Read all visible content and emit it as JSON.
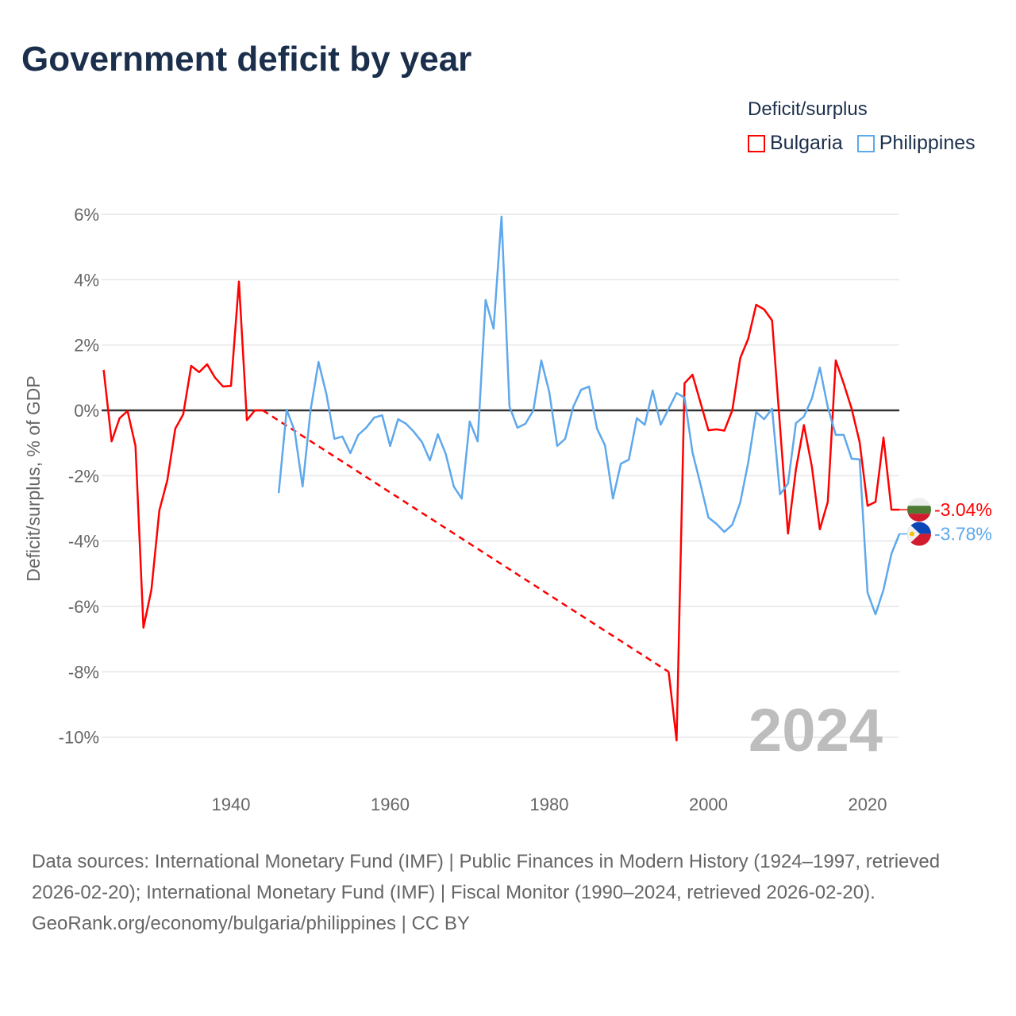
{
  "title": "Government deficit by year",
  "legend": {
    "title": "Deficit/surplus",
    "items": [
      {
        "name": "Bulgaria",
        "color": "#ff0000"
      },
      {
        "name": "Philippines",
        "color": "#5ea8ec"
      }
    ]
  },
  "year_watermark": "2024",
  "footer": {
    "sources": "Data sources: International Monetary Fund (IMF) | Public Finances in Modern History (1924–1997, retrieved 2026-02-20); International Monetary Fund (IMF) | Fiscal Monitor (1990–2024, retrieved 2026-02-20).",
    "credit": "GeoRank.org/economy/bulgaria/philippines | CC BY"
  },
  "chart_data": {
    "type": "line",
    "title": "Government deficit by year",
    "xlabel": "",
    "ylabel": "Deficit/surplus, % of GDP",
    "xlim": [
      1924,
      2024
    ],
    "ylim": [
      -10,
      6
    ],
    "yticks": [
      6,
      4,
      2,
      0,
      -2,
      -4,
      -6,
      -8,
      -10
    ],
    "ytick_labels": [
      "6%",
      "4%",
      "2%",
      "0%",
      "-2%",
      "-4%",
      "-6%",
      "-8%",
      "-10%"
    ],
    "xticks": [
      1940,
      1960,
      1980,
      2000,
      2020
    ],
    "xtick_labels": [
      "1940",
      "1960",
      "1980",
      "2000",
      "2020"
    ],
    "grid": true,
    "legend_position": "top-right",
    "series": [
      {
        "name": "Bulgaria",
        "color": "#ff0000",
        "end_label": "-3.04%",
        "points": [
          [
            1924,
            1.24
          ],
          [
            1925,
            -0.95
          ],
          [
            1926,
            -0.24
          ],
          [
            1927,
            -0.02
          ],
          [
            1928,
            -1.09
          ],
          [
            1929,
            -6.65
          ],
          [
            1930,
            -5.49
          ],
          [
            1931,
            -3.06
          ],
          [
            1932,
            -2.14
          ],
          [
            1933,
            -0.56
          ],
          [
            1934,
            -0.12
          ],
          [
            1935,
            1.36
          ],
          [
            1936,
            1.17
          ],
          [
            1937,
            1.41
          ],
          [
            1938,
            1.0
          ],
          [
            1939,
            0.73
          ],
          [
            1940,
            0.75
          ],
          [
            1941,
            3.94
          ],
          [
            1942,
            -0.3
          ],
          [
            1943,
            0.0
          ],
          [
            1944,
            0.0
          ],
          [
            1995,
            -8.0
          ],
          [
            1996,
            -10.1
          ],
          [
            1997,
            0.83
          ],
          [
            1998,
            1.09
          ],
          [
            1999,
            0.24
          ],
          [
            2000,
            -0.61
          ],
          [
            2001,
            -0.58
          ],
          [
            2002,
            -0.62
          ],
          [
            2003,
            0.0
          ],
          [
            2004,
            1.6
          ],
          [
            2005,
            2.19
          ],
          [
            2006,
            3.23
          ],
          [
            2007,
            3.09
          ],
          [
            2008,
            2.75
          ],
          [
            2009,
            -0.5
          ],
          [
            2010,
            -3.77
          ],
          [
            2011,
            -1.8
          ],
          [
            2012,
            -0.45
          ],
          [
            2013,
            -1.72
          ],
          [
            2014,
            -3.64
          ],
          [
            2015,
            -2.8
          ],
          [
            2016,
            1.53
          ],
          [
            2017,
            0.82
          ],
          [
            2018,
            0.05
          ],
          [
            2019,
            -0.97
          ],
          [
            2020,
            -2.92
          ],
          [
            2021,
            -2.8
          ],
          [
            2022,
            -0.83
          ],
          [
            2023,
            -3.04
          ],
          [
            2024,
            -3.04
          ]
        ]
      },
      {
        "name": "Philippines",
        "color": "#5ea8ec",
        "end_label": "-3.78%",
        "points": [
          [
            1946,
            -2.53
          ],
          [
            1947,
            0.02
          ],
          [
            1948,
            -0.63
          ],
          [
            1949,
            -2.33
          ],
          [
            1950,
            0.0
          ],
          [
            1951,
            1.48
          ],
          [
            1952,
            0.49
          ],
          [
            1953,
            -0.87
          ],
          [
            1954,
            -0.8
          ],
          [
            1955,
            -1.31
          ],
          [
            1956,
            -0.75
          ],
          [
            1957,
            -0.53
          ],
          [
            1958,
            -0.22
          ],
          [
            1959,
            -0.15
          ],
          [
            1960,
            -1.09
          ],
          [
            1961,
            -0.27
          ],
          [
            1962,
            -0.41
          ],
          [
            1963,
            -0.66
          ],
          [
            1964,
            -0.97
          ],
          [
            1965,
            -1.53
          ],
          [
            1966,
            -0.73
          ],
          [
            1967,
            -1.34
          ],
          [
            1968,
            -2.33
          ],
          [
            1969,
            -2.7
          ],
          [
            1970,
            -0.34
          ],
          [
            1971,
            -0.95
          ],
          [
            1972,
            3.38
          ],
          [
            1973,
            2.5
          ],
          [
            1974,
            5.93
          ],
          [
            1975,
            0.12
          ],
          [
            1976,
            -0.53
          ],
          [
            1977,
            -0.41
          ],
          [
            1978,
            0.0
          ],
          [
            1979,
            1.53
          ],
          [
            1980,
            0.56
          ],
          [
            1981,
            -1.09
          ],
          [
            1982,
            -0.87
          ],
          [
            1983,
            0.1
          ],
          [
            1984,
            0.63
          ],
          [
            1985,
            0.73
          ],
          [
            1986,
            -0.56
          ],
          [
            1987,
            -1.07
          ],
          [
            1988,
            -2.7
          ],
          [
            1989,
            -1.63
          ],
          [
            1990,
            -1.51
          ],
          [
            1991,
            -0.24
          ],
          [
            1992,
            -0.44
          ],
          [
            1993,
            0.61
          ],
          [
            1994,
            -0.44
          ],
          [
            1995,
            0.05
          ],
          [
            1996,
            0.53
          ],
          [
            1997,
            0.39
          ],
          [
            1998,
            -1.29
          ],
          [
            1999,
            -2.26
          ],
          [
            2000,
            -3.28
          ],
          [
            2001,
            -3.47
          ],
          [
            2002,
            -3.72
          ],
          [
            2003,
            -3.5
          ],
          [
            2004,
            -2.82
          ],
          [
            2005,
            -1.6
          ],
          [
            2006,
            -0.05
          ],
          [
            2007,
            -0.27
          ],
          [
            2008,
            0.05
          ],
          [
            2009,
            -2.57
          ],
          [
            2010,
            -2.24
          ],
          [
            2011,
            -0.39
          ],
          [
            2012,
            -0.19
          ],
          [
            2013,
            0.36
          ],
          [
            2014,
            1.31
          ],
          [
            2015,
            0.1
          ],
          [
            2016,
            -0.75
          ],
          [
            2017,
            -0.75
          ],
          [
            2018,
            -1.48
          ],
          [
            2019,
            -1.5
          ],
          [
            2020,
            -5.58
          ],
          [
            2021,
            -6.24
          ],
          [
            2022,
            -5.49
          ],
          [
            2023,
            -4.39
          ],
          [
            2024,
            -3.78
          ]
        ]
      }
    ]
  }
}
